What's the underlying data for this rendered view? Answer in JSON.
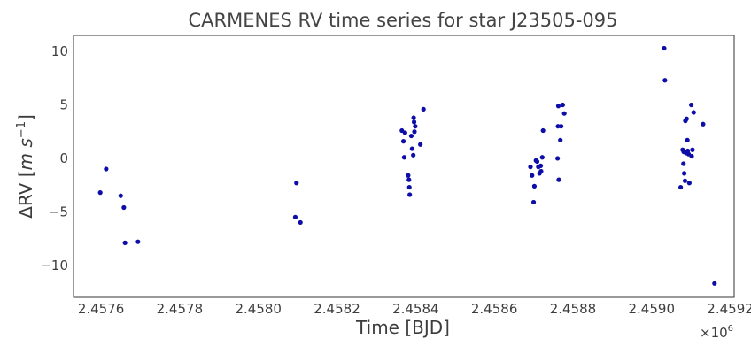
{
  "chart_data": {
    "type": "scatter",
    "title": "CARMENES RV time series for star J23505-095",
    "xlabel": "Time [BJD]",
    "ylabel_main": "ΔRV [",
    "ylabel_unit": "m s",
    "ylabel_exp": "−1",
    "ylabel_close": "]",
    "x_offset_base": "×10",
    "x_offset_exp": "6",
    "xlim": [
      2.45753,
      2.45921
    ],
    "ylim": [
      -13,
      11.5
    ],
    "xticks": [
      2.4576,
      2.4578,
      2.458,
      2.4582,
      2.4584,
      2.4586,
      2.4588,
      2.459,
      2.4592
    ],
    "xtick_labels": [
      "2.4576",
      "2.4578",
      "2.4580",
      "2.4582",
      "2.4584",
      "2.4586",
      "2.4588",
      "2.4590",
      "2.4592"
    ],
    "yticks": [
      -10,
      -5,
      0,
      5,
      10
    ],
    "ytick_labels": [
      "−10",
      "−5",
      "0",
      "5",
      "10"
    ],
    "grid": false,
    "marker_color": "#0d0da8",
    "points": [
      [
        2.457598,
        -3.2
      ],
      [
        2.457613,
        -1.0
      ],
      [
        2.45765,
        -3.5
      ],
      [
        2.457658,
        -4.6
      ],
      [
        2.457661,
        -7.9
      ],
      [
        2.457694,
        -7.8
      ],
      [
        2.458094,
        -5.5
      ],
      [
        2.458097,
        -2.3
      ],
      [
        2.458107,
        -6.0
      ],
      [
        2.458365,
        2.6
      ],
      [
        2.458369,
        1.6
      ],
      [
        2.458371,
        0.1
      ],
      [
        2.458373,
        2.4
      ],
      [
        2.458381,
        -1.6
      ],
      [
        2.458383,
        -2.0
      ],
      [
        2.458384,
        -2.7
      ],
      [
        2.458385,
        -3.4
      ],
      [
        2.458389,
        2.1
      ],
      [
        2.458391,
        0.9
      ],
      [
        2.458394,
        0.3
      ],
      [
        2.458395,
        3.8
      ],
      [
        2.458396,
        3.4
      ],
      [
        2.458397,
        2.5
      ],
      [
        2.458399,
        3.0
      ],
      [
        2.458412,
        1.3
      ],
      [
        2.45842,
        4.6
      ],
      [
        2.458692,
        -0.8
      ],
      [
        2.458696,
        -1.6
      ],
      [
        2.4587,
        -4.1
      ],
      [
        2.458702,
        -2.6
      ],
      [
        2.458706,
        -0.2
      ],
      [
        2.458709,
        -0.3
      ],
      [
        2.458712,
        -0.8
      ],
      [
        2.458715,
        -1.4
      ],
      [
        2.458718,
        -0.7
      ],
      [
        2.458719,
        -1.2
      ],
      [
        2.458722,
        0.1
      ],
      [
        2.458724,
        2.6
      ],
      [
        2.458761,
        0.0
      ],
      [
        2.458762,
        3.0
      ],
      [
        2.458763,
        4.9
      ],
      [
        2.458764,
        -2.0
      ],
      [
        2.458768,
        1.7
      ],
      [
        2.45877,
        3.0
      ],
      [
        2.458774,
        5.0
      ],
      [
        2.458778,
        4.2
      ],
      [
        2.459032,
        10.3
      ],
      [
        2.459034,
        7.3
      ],
      [
        2.459074,
        -2.7
      ],
      [
        2.459079,
        0.8
      ],
      [
        2.459081,
        -0.5
      ],
      [
        2.459082,
        0.6
      ],
      [
        2.459083,
        -1.4
      ],
      [
        2.459085,
        -2.1
      ],
      [
        2.459086,
        3.5
      ],
      [
        2.459088,
        0.5
      ],
      [
        2.459089,
        3.7
      ],
      [
        2.459091,
        1.7
      ],
      [
        2.459092,
        0.7
      ],
      [
        2.459094,
        0.4
      ],
      [
        2.459096,
        -2.3
      ],
      [
        2.459101,
        5.0
      ],
      [
        2.459102,
        0.2
      ],
      [
        2.459104,
        0.8
      ],
      [
        2.459107,
        4.3
      ],
      [
        2.459131,
        3.2
      ],
      [
        2.45916,
        -11.7
      ]
    ]
  }
}
